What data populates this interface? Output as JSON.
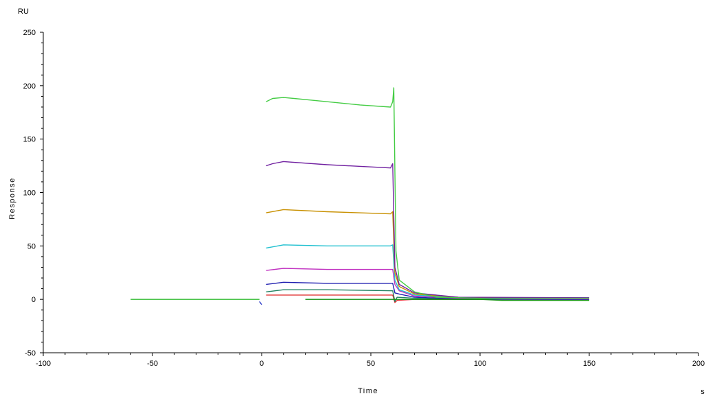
{
  "chart_data": {
    "type": "line",
    "title": "",
    "xlabel": "Time",
    "ylabel": "Response",
    "x_unit": "s",
    "y_unit": "RU",
    "xlim": [
      -100,
      200
    ],
    "ylim": [
      -50,
      250
    ],
    "x_major_ticks": [
      -100,
      -50,
      0,
      50,
      100,
      150,
      200
    ],
    "y_major_ticks": [
      -50,
      0,
      50,
      100,
      150,
      200,
      250
    ],
    "x_tick_labels": [
      "-100",
      "-50",
      "0",
      "50",
      "100",
      "150",
      "200"
    ],
    "y_tick_labels": [
      "-50",
      "0",
      "50",
      "100",
      "150",
      "200",
      "250"
    ],
    "grid": false,
    "legend": "none",
    "series": [
      {
        "color": "#33bb33",
        "points": [
          [
            -60,
            0
          ],
          [
            -5,
            0
          ],
          [
            -1,
            0
          ]
        ]
      },
      {
        "color": "#2f3ec8",
        "points": [
          [
            -1,
            -2
          ],
          [
            0,
            -5
          ]
        ]
      },
      {
        "color": "#e03030",
        "points": [
          [
            2,
            4
          ],
          [
            20,
            4
          ],
          [
            40,
            4
          ],
          [
            60,
            4
          ],
          [
            61,
            -3
          ],
          [
            62,
            -1
          ],
          [
            70,
            0
          ],
          [
            90,
            0
          ],
          [
            150,
            0
          ]
        ]
      },
      {
        "color": "#208060",
        "points": [
          [
            2,
            7
          ],
          [
            10,
            9
          ],
          [
            30,
            9
          ],
          [
            60,
            8
          ],
          [
            61,
            -2
          ],
          [
            62,
            2
          ],
          [
            70,
            1
          ],
          [
            90,
            0
          ],
          [
            150,
            0
          ]
        ]
      },
      {
        "color": "#2020b0",
        "points": [
          [
            2,
            14
          ],
          [
            10,
            16
          ],
          [
            30,
            15
          ],
          [
            60,
            15
          ],
          [
            61,
            6
          ],
          [
            63,
            5
          ],
          [
            70,
            2
          ],
          [
            90,
            0.5
          ],
          [
            150,
            0
          ]
        ]
      },
      {
        "color": "#c030c0",
        "points": [
          [
            2,
            27
          ],
          [
            10,
            29
          ],
          [
            30,
            28
          ],
          [
            60,
            28
          ],
          [
            61,
            14
          ],
          [
            63,
            8
          ],
          [
            70,
            3
          ],
          [
            90,
            1
          ],
          [
            150,
            0.5
          ]
        ]
      },
      {
        "color": "#20c0d0",
        "points": [
          [
            2,
            48
          ],
          [
            10,
            51
          ],
          [
            30,
            50
          ],
          [
            59,
            50
          ],
          [
            60,
            51
          ],
          [
            61,
            18
          ],
          [
            63,
            9
          ],
          [
            70,
            4
          ],
          [
            90,
            1.5
          ],
          [
            150,
            1.5
          ]
        ]
      },
      {
        "color": "#c89000",
        "points": [
          [
            2,
            81
          ],
          [
            10,
            84
          ],
          [
            30,
            82
          ],
          [
            59,
            80
          ],
          [
            60,
            82
          ],
          [
            61,
            25
          ],
          [
            63,
            12
          ],
          [
            70,
            5
          ],
          [
            90,
            2
          ],
          [
            150,
            1
          ]
        ]
      },
      {
        "color": "#7020a0",
        "points": [
          [
            2,
            125
          ],
          [
            5,
            127
          ],
          [
            10,
            129
          ],
          [
            30,
            126
          ],
          [
            59,
            123
          ],
          [
            60,
            127
          ],
          [
            61,
            30
          ],
          [
            63,
            14
          ],
          [
            70,
            6
          ],
          [
            90,
            2
          ],
          [
            150,
            1.5
          ]
        ]
      },
      {
        "color": "#109010",
        "points": [
          [
            20,
            0
          ],
          [
            40,
            0
          ],
          [
            60,
            0
          ],
          [
            75,
            0
          ],
          [
            90,
            0
          ],
          [
            100,
            0
          ],
          [
            110,
            -1
          ],
          [
            130,
            -1
          ],
          [
            150,
            -1
          ]
        ]
      },
      {
        "color": "#44cc44",
        "points": [
          [
            2,
            185
          ],
          [
            5,
            188
          ],
          [
            10,
            189
          ],
          [
            20,
            187
          ],
          [
            30,
            185
          ],
          [
            45,
            182
          ],
          [
            59,
            180
          ],
          [
            60,
            185
          ],
          [
            60.5,
            198
          ],
          [
            61,
            120
          ],
          [
            61.5,
            45
          ],
          [
            63,
            18
          ],
          [
            70,
            7
          ],
          [
            80,
            2
          ],
          [
            100,
            1
          ],
          [
            150,
            1
          ]
        ]
      }
    ]
  }
}
